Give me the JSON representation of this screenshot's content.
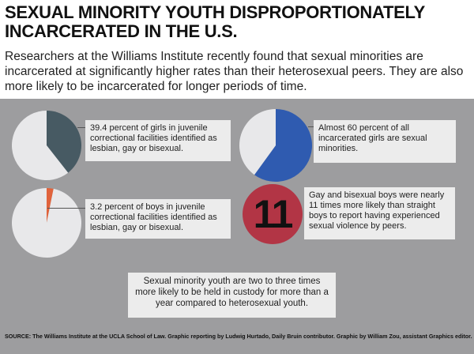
{
  "header": {
    "title": "SEXUAL MINORITY YOUTH DISPROPORTIONATELY INCARCERATED IN THE U.S.",
    "intro": "Researchers at the Williams Institute recently found that sexual minorities are incarcerated at significantly higher rates than their heterosexual peers. They are also more likely to be incarcerated for longer periods of time."
  },
  "chart_data": [
    {
      "type": "pie",
      "slices": [
        {
          "value": 39.4,
          "color": "#475a63"
        },
        {
          "value": 60.6,
          "color": "#e8e8ea"
        }
      ],
      "annotation": "39.4 percent of girls in juvenile correctional facilities identified as lesbian, gay or bisexual."
    },
    {
      "type": "pie",
      "slices": [
        {
          "value": 60,
          "color": "#2f5bb0"
        },
        {
          "value": 40,
          "color": "#e8e8ea"
        }
      ],
      "annotation": "Almost 60 percent of all incarcerated girls are sexual minorities."
    },
    {
      "type": "pie",
      "slices": [
        {
          "value": 3.2,
          "color": "#e0633c"
        },
        {
          "value": 96.8,
          "color": "#e8e8ea"
        }
      ],
      "annotation": "3.2 percent of boys in juvenile correctional facilities identified as lesbian, gay or bisexual."
    }
  ],
  "stat": {
    "number": "11",
    "color": "#b23545",
    "text": "Gay and bisexual boys were nearly 11 times more likely than straight boys to report having experienced sexual violence by peers."
  },
  "bottom_note": "Sexual minority youth are two to three times more likely to be held in custody for more than a year compared to heterosexual youth.",
  "source": "SOURCE: The Williams Institute at the UCLA School of Law. Graphic reporting by Ludwig Hurtado, Daily Bruin contributor. Graphic by William Zou, assistant Graphics editor."
}
